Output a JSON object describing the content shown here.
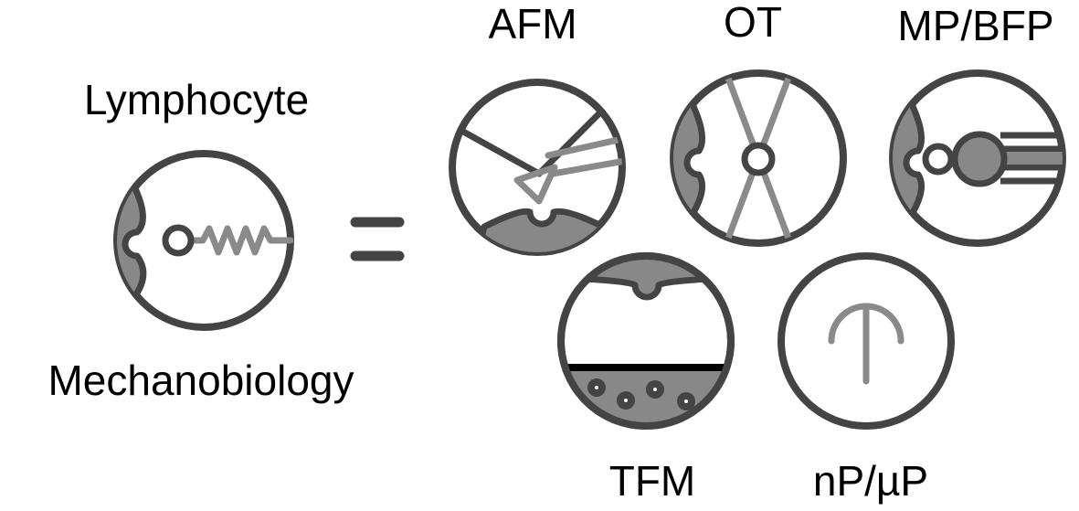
{
  "labels": {
    "lymphocyte": "Lymphocyte",
    "mechanobiology": "Mechanobiology",
    "afm": "AFM",
    "ot": "OT",
    "mp_bfp": "MP/BFP",
    "tfm": "TFM",
    "np_up": "nP/µP"
  },
  "colors": {
    "outline": "#444444",
    "cell_fill": "#888888",
    "probe_grey": "#8a8a8a",
    "background": "#ffffff"
  }
}
